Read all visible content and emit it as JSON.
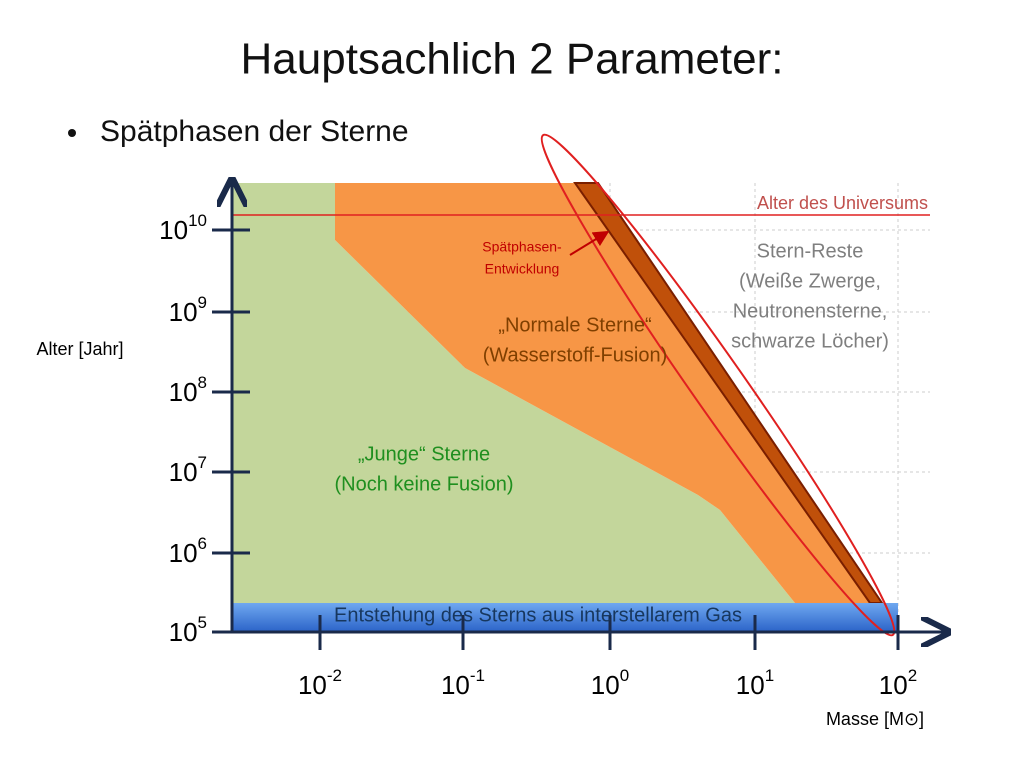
{
  "header": {
    "title": "Hauptsachlich 2 Parameter:",
    "bullet": "Spätphasen der Sterne"
  },
  "diagram": {
    "y_axis": {
      "label": "Alter [Jahr]",
      "ticks": [
        {
          "base": "10",
          "exp": "10"
        },
        {
          "base": "10",
          "exp": "9"
        },
        {
          "base": "10",
          "exp": "8"
        },
        {
          "base": "10",
          "exp": "7"
        },
        {
          "base": "10",
          "exp": "6"
        },
        {
          "base": "10",
          "exp": "5"
        }
      ]
    },
    "x_axis": {
      "label": "Masse [M⊙]",
      "ticks": [
        {
          "base": "10",
          "exp": "-2"
        },
        {
          "base": "10",
          "exp": "-1"
        },
        {
          "base": "10",
          "exp": "0"
        },
        {
          "base": "10",
          "exp": "1"
        },
        {
          "base": "10",
          "exp": "2"
        }
      ]
    },
    "universe_line": "Alter des Universums",
    "late_phase": [
      "Spätphasen-",
      "Entwicklung"
    ],
    "remnants": [
      "Stern-Reste",
      "(Weiße Zwerge,",
      "Neutronensterne,",
      "schwarze Löcher)"
    ],
    "normal_stars": [
      "„Normale Sterne“",
      "(Wasserstoff-Fusion)"
    ],
    "young_stars": [
      "„Junge“ Sterne",
      "(Noch keine Fusion)"
    ],
    "formation": "Entstehung des Sterns aus interstellarem Gas"
  }
}
